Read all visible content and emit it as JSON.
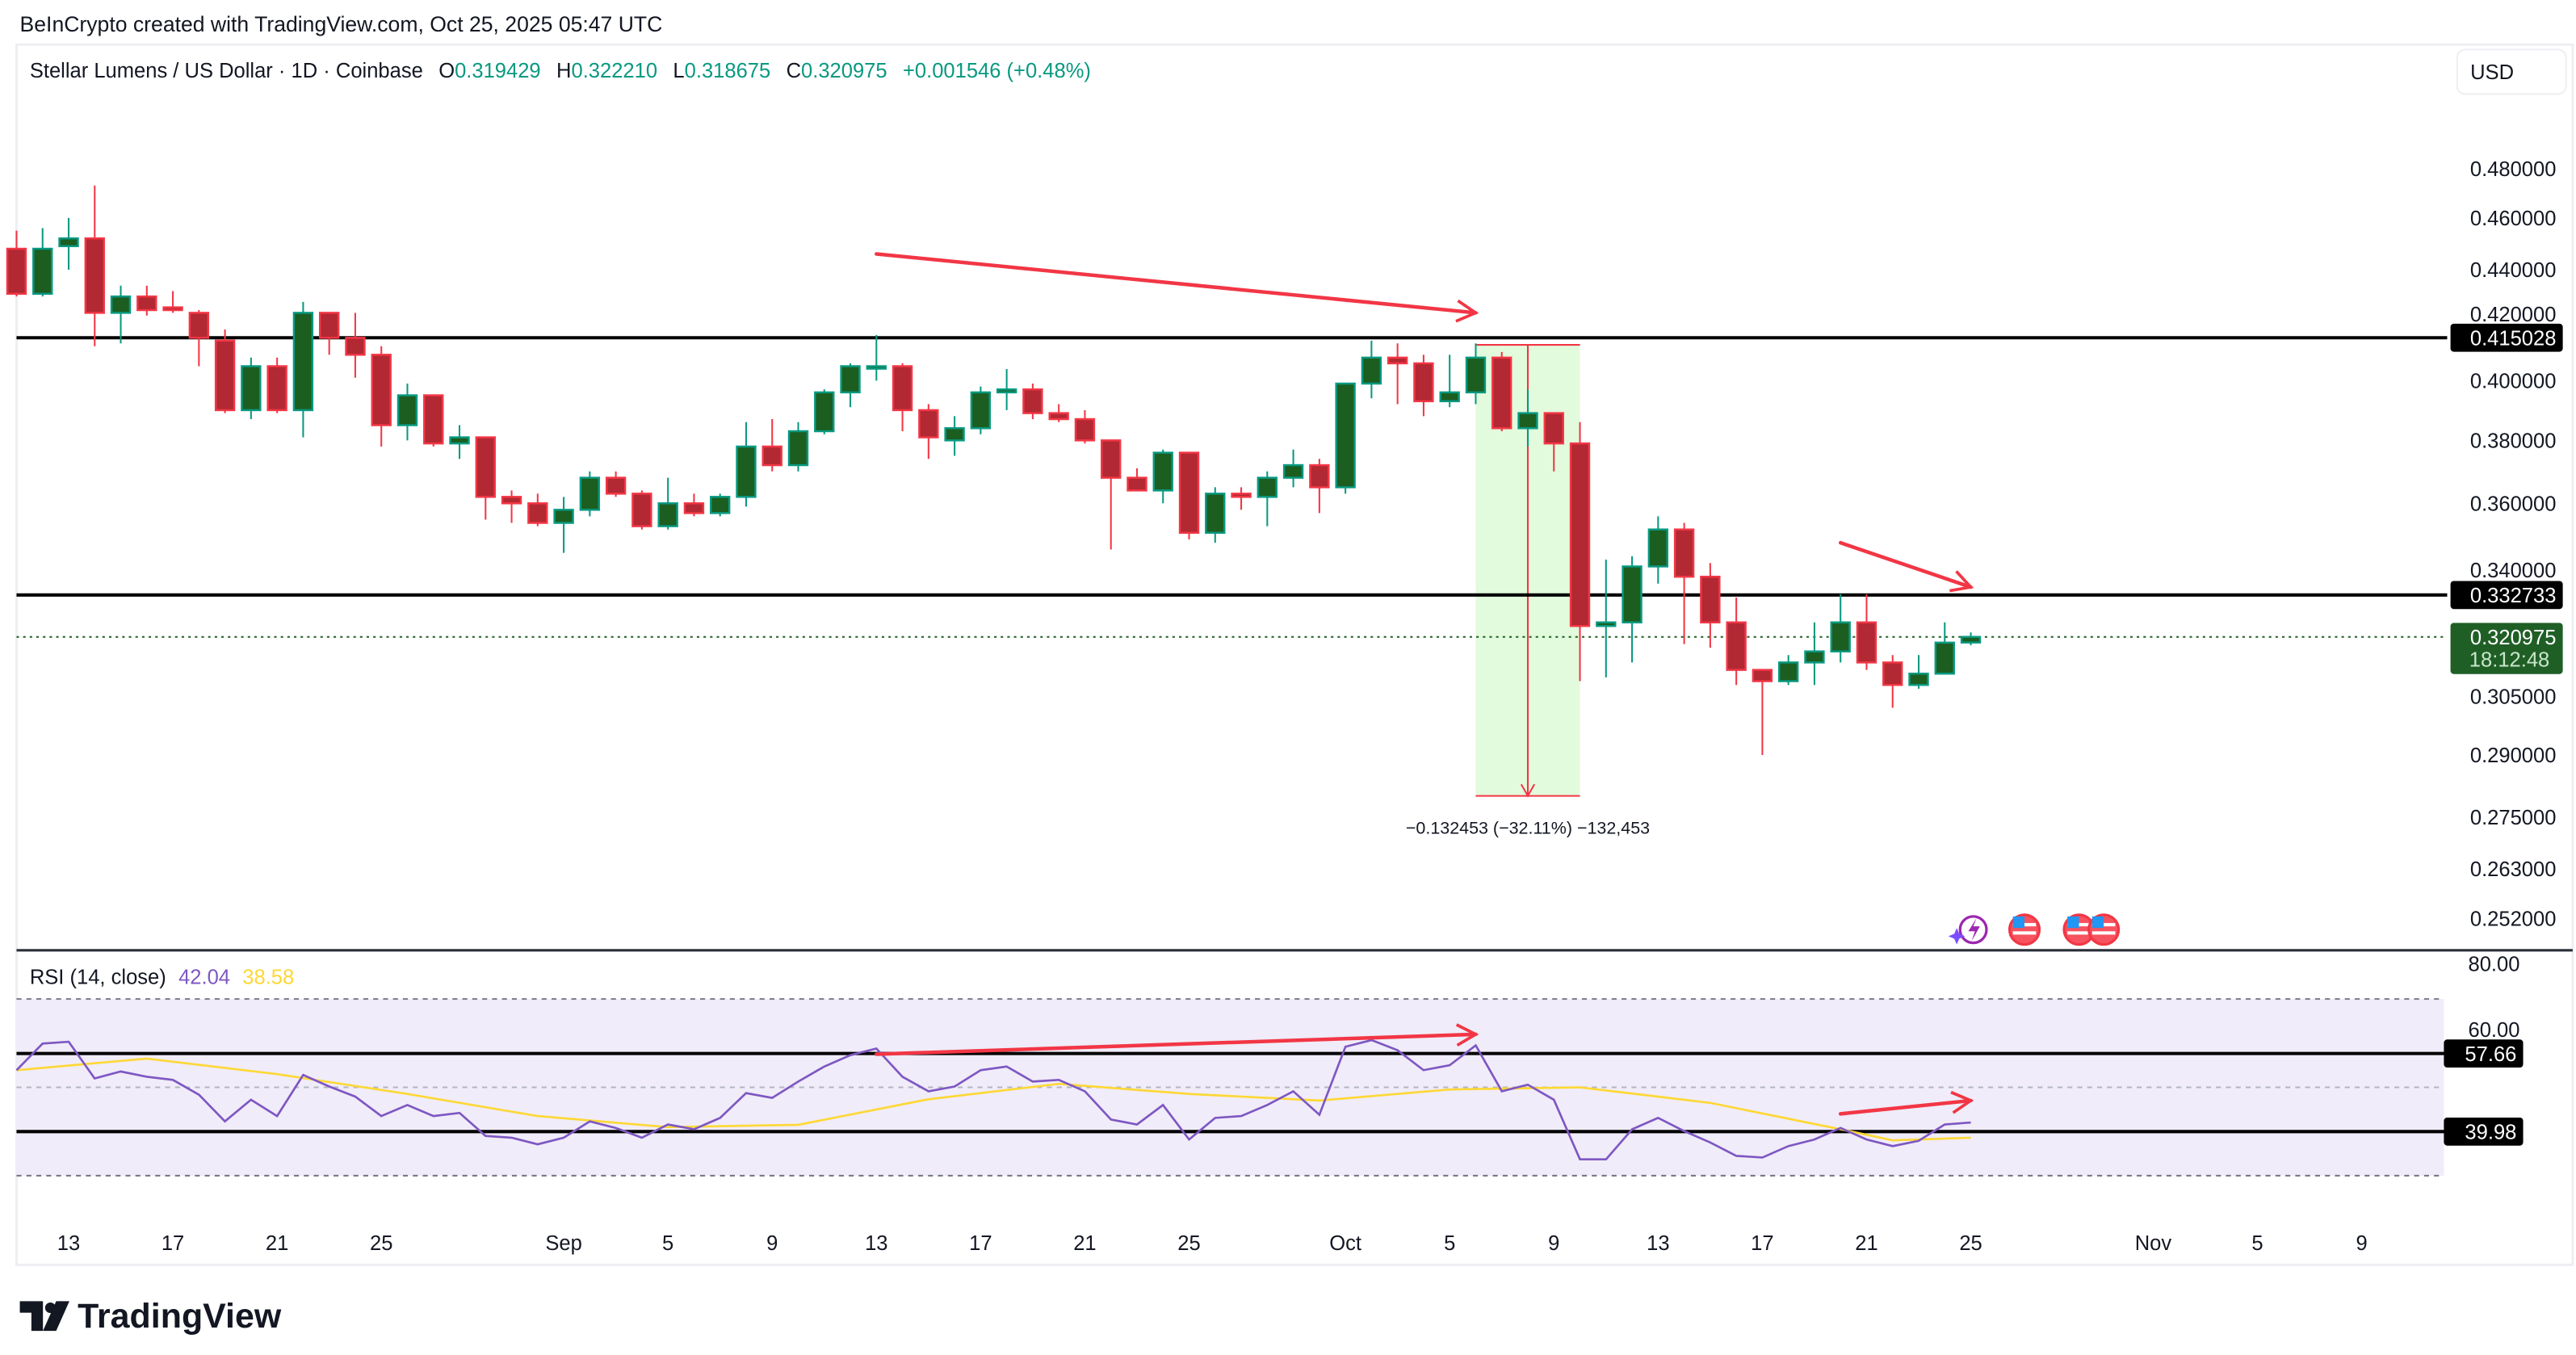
{
  "attribution": "BeInCrypto created with TradingView.com, Oct 25, 2025 05:47 UTC",
  "legend": {
    "symbol": "Stellar Lumens / US Dollar · 1D · Coinbase",
    "open_label": "O",
    "open": "0.319429",
    "high_label": "H",
    "high": "0.322210",
    "low_label": "L",
    "low": "0.318675",
    "close_label": "C",
    "close": "0.320975",
    "change": "+0.001546 (+0.48%)"
  },
  "currency_button": "USD",
  "rsi_legend": {
    "label": "RSI (14, close)",
    "rsi": "42.04",
    "ma": "38.58"
  },
  "measure_label": "−0.132453 (−32.11%) −132,453",
  "price_axis": [
    "0.480000",
    "0.460000",
    "0.440000",
    "0.420000",
    "0.400000",
    "0.380000",
    "0.360000",
    "0.340000",
    "0.305000",
    "0.290000",
    "0.275000",
    "0.263000",
    "0.252000"
  ],
  "rsi_axis": [
    "80.00",
    "60.00"
  ],
  "price_levels": [
    {
      "label": "0.415028",
      "value": 0.415028
    },
    {
      "label": "0.332733",
      "value": 0.332733
    }
  ],
  "rsi_levels": [
    {
      "label": "57.66",
      "value": 57.66
    },
    {
      "label": "39.98",
      "value": 39.98
    }
  ],
  "last_price": {
    "label": "0.320975",
    "value": 0.320975,
    "countdown": "18:12:48"
  },
  "footer_logo": "TradingView",
  "colors": {
    "up_body": "#1b5e20",
    "up_border": "#089981",
    "down_body": "#b22833",
    "down_border": "#f23645",
    "rsi": "#7e57c2",
    "rsi_ma": "#fdd835",
    "annotation": "#f23645",
    "rsi_band": "#f0ecf9",
    "measure_fill": "#e2fbdc"
  },
  "icons": [
    "lightning-event-icon",
    "us-flag-event-icon",
    "us-flag-event-icon",
    "us-flag-event-icon"
  ],
  "chart_data": {
    "type": "candlestick",
    "scale": "log",
    "ylim": [
      0.252,
      0.48
    ],
    "x_ticks": [
      {
        "label": "13",
        "date": "2025-08-13"
      },
      {
        "label": "17",
        "date": "2025-08-17"
      },
      {
        "label": "21",
        "date": "2025-08-21"
      },
      {
        "label": "25",
        "date": "2025-08-25"
      },
      {
        "label": "Sep",
        "date": "2025-09-01"
      },
      {
        "label": "5",
        "date": "2025-09-05"
      },
      {
        "label": "9",
        "date": "2025-09-09"
      },
      {
        "label": "13",
        "date": "2025-09-13"
      },
      {
        "label": "17",
        "date": "2025-09-17"
      },
      {
        "label": "21",
        "date": "2025-09-21"
      },
      {
        "label": "25",
        "date": "2025-09-25"
      },
      {
        "label": "Oct",
        "date": "2025-10-01"
      },
      {
        "label": "5",
        "date": "2025-10-05"
      },
      {
        "label": "9",
        "date": "2025-10-09"
      },
      {
        "label": "13",
        "date": "2025-10-13"
      },
      {
        "label": "17",
        "date": "2025-10-17"
      },
      {
        "label": "21",
        "date": "2025-10-21"
      },
      {
        "label": "25",
        "date": "2025-10-25"
      },
      {
        "label": "Nov",
        "date": "2025-11-01"
      },
      {
        "label": "5",
        "date": "2025-11-05"
      },
      {
        "label": "9",
        "date": "2025-11-09"
      }
    ],
    "candles_columns": [
      "date",
      "open",
      "high",
      "low",
      "close"
    ],
    "candles": [
      [
        "2025-08-11",
        0.448,
        0.455,
        0.43,
        0.431
      ],
      [
        "2025-08-12",
        0.431,
        0.456,
        0.43,
        0.448
      ],
      [
        "2025-08-13",
        0.449,
        0.46,
        0.44,
        0.452
      ],
      [
        "2025-08-14",
        0.452,
        0.473,
        0.412,
        0.424
      ],
      [
        "2025-08-15",
        0.424,
        0.434,
        0.413,
        0.43
      ],
      [
        "2025-08-16",
        0.43,
        0.434,
        0.423,
        0.425
      ],
      [
        "2025-08-17",
        0.426,
        0.432,
        0.424,
        0.425
      ],
      [
        "2025-08-18",
        0.424,
        0.425,
        0.405,
        0.415
      ],
      [
        "2025-08-19",
        0.414,
        0.418,
        0.389,
        0.39
      ],
      [
        "2025-08-20",
        0.39,
        0.408,
        0.387,
        0.405
      ],
      [
        "2025-08-21",
        0.405,
        0.408,
        0.389,
        0.39
      ],
      [
        "2025-08-22",
        0.39,
        0.428,
        0.381,
        0.424
      ],
      [
        "2025-08-23",
        0.424,
        0.424,
        0.409,
        0.415
      ],
      [
        "2025-08-24",
        0.415,
        0.424,
        0.401,
        0.409
      ],
      [
        "2025-08-25",
        0.409,
        0.412,
        0.378,
        0.385
      ],
      [
        "2025-08-26",
        0.385,
        0.399,
        0.38,
        0.395
      ],
      [
        "2025-08-27",
        0.395,
        0.395,
        0.378,
        0.379
      ],
      [
        "2025-08-28",
        0.379,
        0.385,
        0.374,
        0.381
      ],
      [
        "2025-08-29",
        0.381,
        0.381,
        0.355,
        0.362
      ],
      [
        "2025-08-30",
        0.362,
        0.364,
        0.354,
        0.36
      ],
      [
        "2025-08-31",
        0.36,
        0.363,
        0.353,
        0.354
      ],
      [
        "2025-09-01",
        0.354,
        0.362,
        0.345,
        0.358
      ],
      [
        "2025-09-02",
        0.358,
        0.37,
        0.356,
        0.368
      ],
      [
        "2025-09-03",
        0.368,
        0.37,
        0.362,
        0.363
      ],
      [
        "2025-09-04",
        0.363,
        0.364,
        0.352,
        0.353
      ],
      [
        "2025-09-05",
        0.353,
        0.368,
        0.352,
        0.36
      ],
      [
        "2025-09-06",
        0.36,
        0.363,
        0.356,
        0.357
      ],
      [
        "2025-09-07",
        0.357,
        0.363,
        0.356,
        0.362
      ],
      [
        "2025-09-08",
        0.362,
        0.386,
        0.359,
        0.378
      ],
      [
        "2025-09-09",
        0.378,
        0.387,
        0.37,
        0.372
      ],
      [
        "2025-09-10",
        0.372,
        0.386,
        0.37,
        0.383
      ],
      [
        "2025-09-11",
        0.383,
        0.397,
        0.382,
        0.396
      ],
      [
        "2025-09-12",
        0.396,
        0.406,
        0.391,
        0.405
      ],
      [
        "2025-09-13",
        0.405,
        0.416,
        0.4,
        0.405
      ],
      [
        "2025-09-14",
        0.405,
        0.406,
        0.383,
        0.39
      ],
      [
        "2025-09-15",
        0.39,
        0.392,
        0.374,
        0.381
      ],
      [
        "2025-09-16",
        0.38,
        0.388,
        0.375,
        0.384
      ],
      [
        "2025-09-17",
        0.384,
        0.398,
        0.382,
        0.396
      ],
      [
        "2025-09-18",
        0.396,
        0.404,
        0.39,
        0.397
      ],
      [
        "2025-09-19",
        0.397,
        0.399,
        0.387,
        0.389
      ],
      [
        "2025-09-20",
        0.389,
        0.392,
        0.386,
        0.387
      ],
      [
        "2025-09-21",
        0.387,
        0.39,
        0.379,
        0.38
      ],
      [
        "2025-09-22",
        0.38,
        0.38,
        0.346,
        0.368
      ],
      [
        "2025-09-23",
        0.368,
        0.371,
        0.364,
        0.364
      ],
      [
        "2025-09-24",
        0.364,
        0.377,
        0.36,
        0.376
      ],
      [
        "2025-09-25",
        0.376,
        0.376,
        0.349,
        0.351
      ],
      [
        "2025-09-26",
        0.351,
        0.365,
        0.348,
        0.363
      ],
      [
        "2025-09-27",
        0.363,
        0.365,
        0.358,
        0.362
      ],
      [
        "2025-09-28",
        0.362,
        0.37,
        0.353,
        0.368
      ],
      [
        "2025-09-29",
        0.368,
        0.377,
        0.365,
        0.372
      ],
      [
        "2025-09-30",
        0.372,
        0.374,
        0.357,
        0.365
      ],
      [
        "2025-10-01",
        0.365,
        0.399,
        0.363,
        0.399
      ],
      [
        "2025-10-02",
        0.399,
        0.414,
        0.394,
        0.408
      ],
      [
        "2025-10-03",
        0.408,
        0.413,
        0.392,
        0.406
      ],
      [
        "2025-10-04",
        0.406,
        0.409,
        0.388,
        0.393
      ],
      [
        "2025-10-05",
        0.393,
        0.409,
        0.391,
        0.396
      ],
      [
        "2025-10-06",
        0.396,
        0.413,
        0.392,
        0.408
      ],
      [
        "2025-10-07",
        0.408,
        0.41,
        0.383,
        0.384
      ],
      [
        "2025-10-08",
        0.384,
        0.397,
        0.378,
        0.389
      ],
      [
        "2025-10-09",
        0.389,
        0.389,
        0.37,
        0.379
      ],
      [
        "2025-10-10",
        0.379,
        0.386,
        0.309,
        0.324
      ],
      [
        "2025-10-11",
        0.324,
        0.343,
        0.31,
        0.325
      ],
      [
        "2025-10-12",
        0.325,
        0.344,
        0.314,
        0.341
      ],
      [
        "2025-10-13",
        0.341,
        0.356,
        0.336,
        0.352
      ],
      [
        "2025-10-14",
        0.352,
        0.354,
        0.319,
        0.338
      ],
      [
        "2025-10-15",
        0.338,
        0.342,
        0.318,
        0.325
      ],
      [
        "2025-10-16",
        0.325,
        0.332,
        0.308,
        0.312
      ],
      [
        "2025-10-17",
        0.312,
        0.312,
        0.29,
        0.309
      ],
      [
        "2025-10-18",
        0.309,
        0.316,
        0.308,
        0.314
      ],
      [
        "2025-10-19",
        0.314,
        0.325,
        0.308,
        0.317
      ],
      [
        "2025-10-20",
        0.317,
        0.333,
        0.314,
        0.325
      ],
      [
        "2025-10-21",
        0.325,
        0.333,
        0.312,
        0.314
      ],
      [
        "2025-10-22",
        0.314,
        0.316,
        0.302,
        0.308
      ],
      [
        "2025-10-23",
        0.308,
        0.316,
        0.307,
        0.311
      ],
      [
        "2025-10-24",
        0.311,
        0.325,
        0.311,
        0.3194
      ],
      [
        "2025-10-25",
        0.319429,
        0.32221,
        0.318675,
        0.320975
      ]
    ],
    "rsi": {
      "name": "RSI (14, close)",
      "ylim": [
        20,
        80
      ],
      "bands": [
        30,
        50,
        70
      ],
      "values": [
        [
          "2025-08-11",
          53.9
        ],
        [
          "2025-08-12",
          59.9
        ],
        [
          "2025-08-13",
          60.3
        ],
        [
          "2025-08-14",
          52.0
        ],
        [
          "2025-08-15",
          53.6
        ],
        [
          "2025-08-16",
          52.4
        ],
        [
          "2025-08-17",
          51.7
        ],
        [
          "2025-08-18",
          48.3
        ],
        [
          "2025-08-19",
          42.3
        ],
        [
          "2025-08-20",
          47.2
        ],
        [
          "2025-08-21",
          43.5
        ],
        [
          "2025-08-22",
          52.8
        ],
        [
          "2025-08-23",
          50.2
        ],
        [
          "2025-08-24",
          47.9
        ],
        [
          "2025-08-25",
          43.5
        ],
        [
          "2025-08-26",
          46.0
        ],
        [
          "2025-08-27",
          43.5
        ],
        [
          "2025-08-28",
          44.2
        ],
        [
          "2025-08-29",
          39.0
        ],
        [
          "2025-08-30",
          38.6
        ],
        [
          "2025-08-31",
          37.1
        ],
        [
          "2025-09-01",
          38.6
        ],
        [
          "2025-09-02",
          42.3
        ],
        [
          "2025-09-03",
          40.8
        ],
        [
          "2025-09-04",
          38.6
        ],
        [
          "2025-09-05",
          41.6
        ],
        [
          "2025-09-06",
          40.5
        ],
        [
          "2025-09-07",
          43.1
        ],
        [
          "2025-09-08",
          48.7
        ],
        [
          "2025-09-09",
          47.6
        ],
        [
          "2025-09-10",
          51.3
        ],
        [
          "2025-09-11",
          54.7
        ],
        [
          "2025-09-12",
          57.3
        ],
        [
          "2025-09-13",
          58.8
        ],
        [
          "2025-09-14",
          52.4
        ],
        [
          "2025-09-15",
          49.1
        ],
        [
          "2025-09-16",
          50.2
        ],
        [
          "2025-09-17",
          53.9
        ],
        [
          "2025-09-18",
          54.7
        ],
        [
          "2025-09-19",
          51.3
        ],
        [
          "2025-09-20",
          51.7
        ],
        [
          "2025-09-21",
          49.1
        ],
        [
          "2025-09-22",
          42.7
        ],
        [
          "2025-09-23",
          41.6
        ],
        [
          "2025-09-24",
          46.0
        ],
        [
          "2025-09-25",
          38.2
        ],
        [
          "2025-09-26",
          43.1
        ],
        [
          "2025-09-27",
          43.5
        ],
        [
          "2025-09-28",
          46.0
        ],
        [
          "2025-09-29",
          49.1
        ],
        [
          "2025-09-30",
          43.8
        ],
        [
          "2025-10-01",
          59.2
        ],
        [
          "2025-10-02",
          60.7
        ],
        [
          "2025-10-03",
          58.4
        ],
        [
          "2025-10-04",
          53.9
        ],
        [
          "2025-10-05",
          55.0
        ],
        [
          "2025-10-06",
          59.5
        ],
        [
          "2025-10-07",
          49.1
        ],
        [
          "2025-10-08",
          50.6
        ],
        [
          "2025-10-09",
          47.2
        ],
        [
          "2025-10-10",
          33.7
        ],
        [
          "2025-10-11",
          33.7
        ],
        [
          "2025-10-12",
          40.5
        ],
        [
          "2025-10-13",
          43.1
        ],
        [
          "2025-10-14",
          40.1
        ],
        [
          "2025-10-15",
          37.5
        ],
        [
          "2025-10-16",
          34.5
        ],
        [
          "2025-10-17",
          34.1
        ],
        [
          "2025-10-18",
          36.7
        ],
        [
          "2025-10-19",
          38.2
        ],
        [
          "2025-10-20",
          40.8
        ],
        [
          "2025-10-21",
          38.2
        ],
        [
          "2025-10-22",
          36.7
        ],
        [
          "2025-10-23",
          37.9
        ],
        [
          "2025-10-24",
          41.6
        ],
        [
          "2025-10-25",
          42.04
        ]
      ],
      "ma_values": [
        [
          "2025-08-11",
          53.9
        ],
        [
          "2025-08-16",
          56.5
        ],
        [
          "2025-08-21",
          53.0
        ],
        [
          "2025-08-26",
          48.5
        ],
        [
          "2025-08-31",
          43.5
        ],
        [
          "2025-09-05",
          41.0
        ],
        [
          "2025-09-10",
          41.5
        ],
        [
          "2025-09-15",
          47.3
        ],
        [
          "2025-09-20",
          50.8
        ],
        [
          "2025-09-25",
          48.5
        ],
        [
          "2025-09-30",
          47.0
        ],
        [
          "2025-10-05",
          49.5
        ],
        [
          "2025-10-10",
          50.0
        ],
        [
          "2025-10-15",
          46.5
        ],
        [
          "2025-10-20",
          40.5
        ],
        [
          "2025-10-22",
          38.0
        ],
        [
          "2025-10-25",
          38.58
        ]
      ]
    },
    "annotations": {
      "price_arrows": [
        {
          "from": [
            "2025-09-13",
            0.446
          ],
          "to": [
            "2025-10-06",
            0.424
          ]
        },
        {
          "from": [
            "2025-10-20",
            0.348
          ],
          "to": [
            "2025-10-25",
            0.335
          ]
        }
      ],
      "rsi_arrows": [
        {
          "from": [
            "2025-09-13",
            57.5
          ],
          "to": [
            "2025-10-06",
            62.0
          ]
        },
        {
          "from": [
            "2025-10-20",
            44.0
          ],
          "to": [
            "2025-10-25",
            47.0
          ]
        }
      ],
      "measure": {
        "from_date": "2025-10-06",
        "to_date": "2025-10-10",
        "top": 0.4125,
        "bottom": 0.28,
        "change": -0.132453,
        "percent": -32.11
      }
    }
  }
}
